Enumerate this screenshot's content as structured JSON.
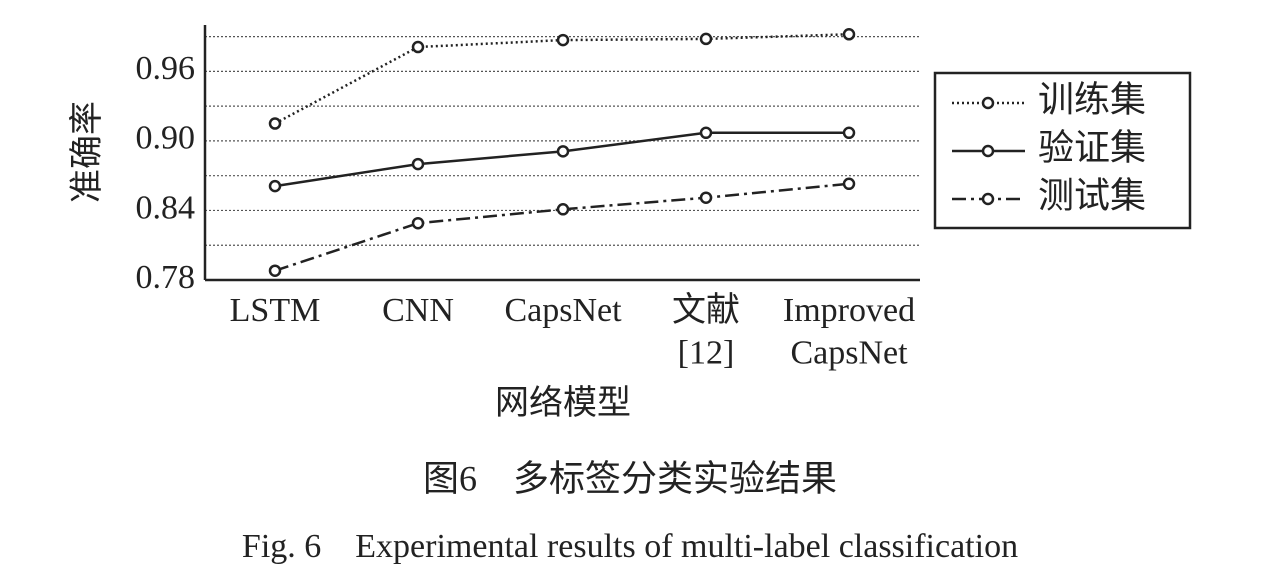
{
  "chart_data": {
    "type": "line",
    "categories": [
      "LSTM",
      "CNN",
      "CapsNet",
      "文献\n[12]",
      "Improved\nCapsNet"
    ],
    "series": [
      {
        "name": "训练集",
        "color": "#222222",
        "line_style": "dotted",
        "values": [
          0.915,
          0.981,
          0.987,
          0.988,
          0.992
        ]
      },
      {
        "name": "验证集",
        "color": "#222222",
        "line_style": "solid",
        "values": [
          0.861,
          0.88,
          0.891,
          0.907,
          0.907
        ]
      },
      {
        "name": "测试集",
        "color": "#222222",
        "line_style": "dashdot",
        "values": [
          0.788,
          0.829,
          0.841,
          0.851,
          0.863
        ]
      }
    ],
    "ylim": [
      0.78,
      1.0
    ],
    "yticks": [
      0.78,
      0.84,
      {
        "value": 0.9,
        "label": "0.90"
      },
      0.96
    ],
    "minor_yticks": [
      0.81,
      0.87,
      0.93,
      0.99
    ],
    "grid": true,
    "legend": "right",
    "xlabel": "网络模型",
    "ylabel": "准确率",
    "caption_cn": "图6　多标签分类实验结果",
    "caption_en": "Fig. 6　Experimental results of multi-label classification"
  }
}
